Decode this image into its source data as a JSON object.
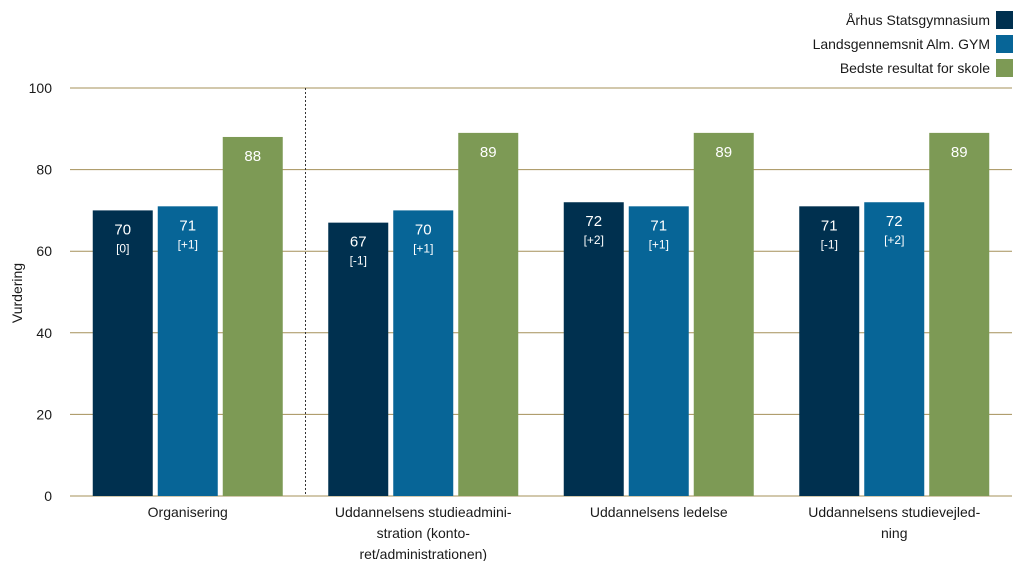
{
  "chart_data": {
    "type": "bar",
    "ylabel": "Vurdering",
    "ylim": [
      0,
      100
    ],
    "yticks": [
      0,
      20,
      40,
      60,
      80,
      100
    ],
    "grid": true,
    "legend_position": "top-right",
    "categories": [
      [
        "Organisering"
      ],
      [
        "Uddannelsens studieadmini-",
        "stration (konto-",
        "ret/administrationen)"
      ],
      [
        "Uddannelsens ledelse"
      ],
      [
        "Uddannelsens studievejled-",
        "ning"
      ]
    ],
    "series": [
      {
        "name": "Århus Statsgymnasium",
        "color": "#00304f",
        "values": [
          70,
          67,
          72,
          71
        ],
        "value_labels": [
          "70",
          "67",
          "72",
          "71"
        ],
        "diff_labels": [
          "[0]",
          "[-1]",
          "[+2]",
          "[-1]"
        ]
      },
      {
        "name": "Landsgennemsnit Alm. GYM",
        "color": "#076597",
        "values": [
          71,
          70,
          71,
          72
        ],
        "value_labels": [
          "71",
          "70",
          "71",
          "72"
        ],
        "diff_labels": [
          "[+1]",
          "[+1]",
          "[+1]",
          "[+2]"
        ]
      },
      {
        "name": "Bedste resultat for skole",
        "color": "#7d9a55",
        "values": [
          88,
          89,
          89,
          89
        ],
        "value_labels": [
          "88",
          "89",
          "89",
          "89"
        ],
        "diff_labels": [
          "",
          "",
          "",
          ""
        ]
      }
    ],
    "grid_color": "#a5915a",
    "separator_after_category": 0
  }
}
